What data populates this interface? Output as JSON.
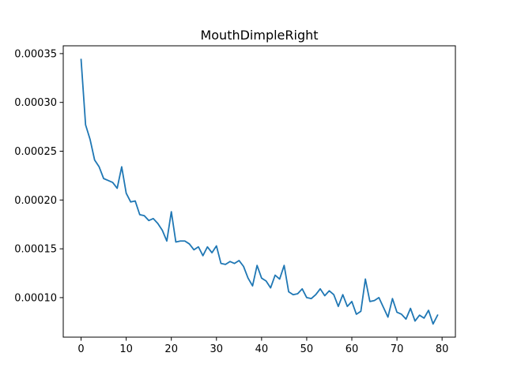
{
  "chart_data": {
    "type": "line",
    "title": "MouthDimpleRight",
    "xlabel": "",
    "ylabel": "",
    "xlim": [
      -3.95,
      82.95
    ],
    "ylim": [
      5.95e-05,
      0.000358
    ],
    "x_ticks": [
      0,
      10,
      20,
      30,
      40,
      50,
      60,
      70,
      80
    ],
    "x_tick_labels": [
      "0",
      "10",
      "20",
      "30",
      "40",
      "50",
      "60",
      "70",
      "80"
    ],
    "y_ticks": [
      0.0001,
      0.00015,
      0.0002,
      0.00025,
      0.0003,
      0.00035
    ],
    "y_tick_labels": [
      "0.00010",
      "0.00015",
      "0.00020",
      "0.00025",
      "0.00030",
      "0.00035"
    ],
    "grid": false,
    "legend": "none",
    "series": [
      {
        "color": "#1f77b4",
        "x": [
          0,
          1,
          2,
          3,
          4,
          5,
          6,
          7,
          8,
          9,
          10,
          11,
          12,
          13,
          14,
          15,
          16,
          17,
          18,
          19,
          20,
          21,
          22,
          23,
          24,
          25,
          26,
          27,
          28,
          29,
          30,
          31,
          32,
          33,
          34,
          35,
          36,
          37,
          38,
          39,
          40,
          41,
          42,
          43,
          44,
          45,
          46,
          47,
          48,
          49,
          50,
          51,
          52,
          53,
          54,
          55,
          56,
          57,
          58,
          59,
          60,
          61,
          62,
          63,
          64,
          65,
          66,
          67,
          68,
          69,
          70,
          71,
          72,
          73,
          74,
          75,
          76,
          77,
          78,
          79
        ],
        "y": [
          0.000344,
          0.000277,
          0.000262,
          0.000241,
          0.000234,
          0.000222,
          0.00022,
          0.000218,
          0.000212,
          0.000234,
          0.000207,
          0.000198,
          0.000199,
          0.000185,
          0.000184,
          0.000179,
          0.000181,
          0.000176,
          0.000169,
          0.000158,
          0.000188,
          0.000157,
          0.000158,
          0.000158,
          0.000155,
          0.000149,
          0.000152,
          0.000143,
          0.000152,
          0.000146,
          0.000153,
          0.000135,
          0.000134,
          0.000137,
          0.000135,
          0.000138,
          0.000132,
          0.00012,
          0.000112,
          0.000133,
          0.00012,
          0.000117,
          0.00011,
          0.000123,
          0.000119,
          0.000133,
          0.000106,
          0.000103,
          0.000104,
          0.000109,
          0.0001,
          9.9e-05,
          0.000103,
          0.000109,
          0.000102,
          0.000107,
          0.000103,
          9.1e-05,
          0.000103,
          9.1e-05,
          9.6e-05,
          8.3e-05,
          8.6e-05,
          0.000119,
          9.6e-05,
          9.7e-05,
          0.0001,
          9e-05,
          8e-05,
          9.9e-05,
          8.5e-05,
          8.3e-05,
          7.8e-05,
          8.9e-05,
          7.6e-05,
          8.2e-05,
          7.9e-05,
          8.7e-05,
          7.3e-05,
          8.2e-05
        ]
      }
    ]
  }
}
